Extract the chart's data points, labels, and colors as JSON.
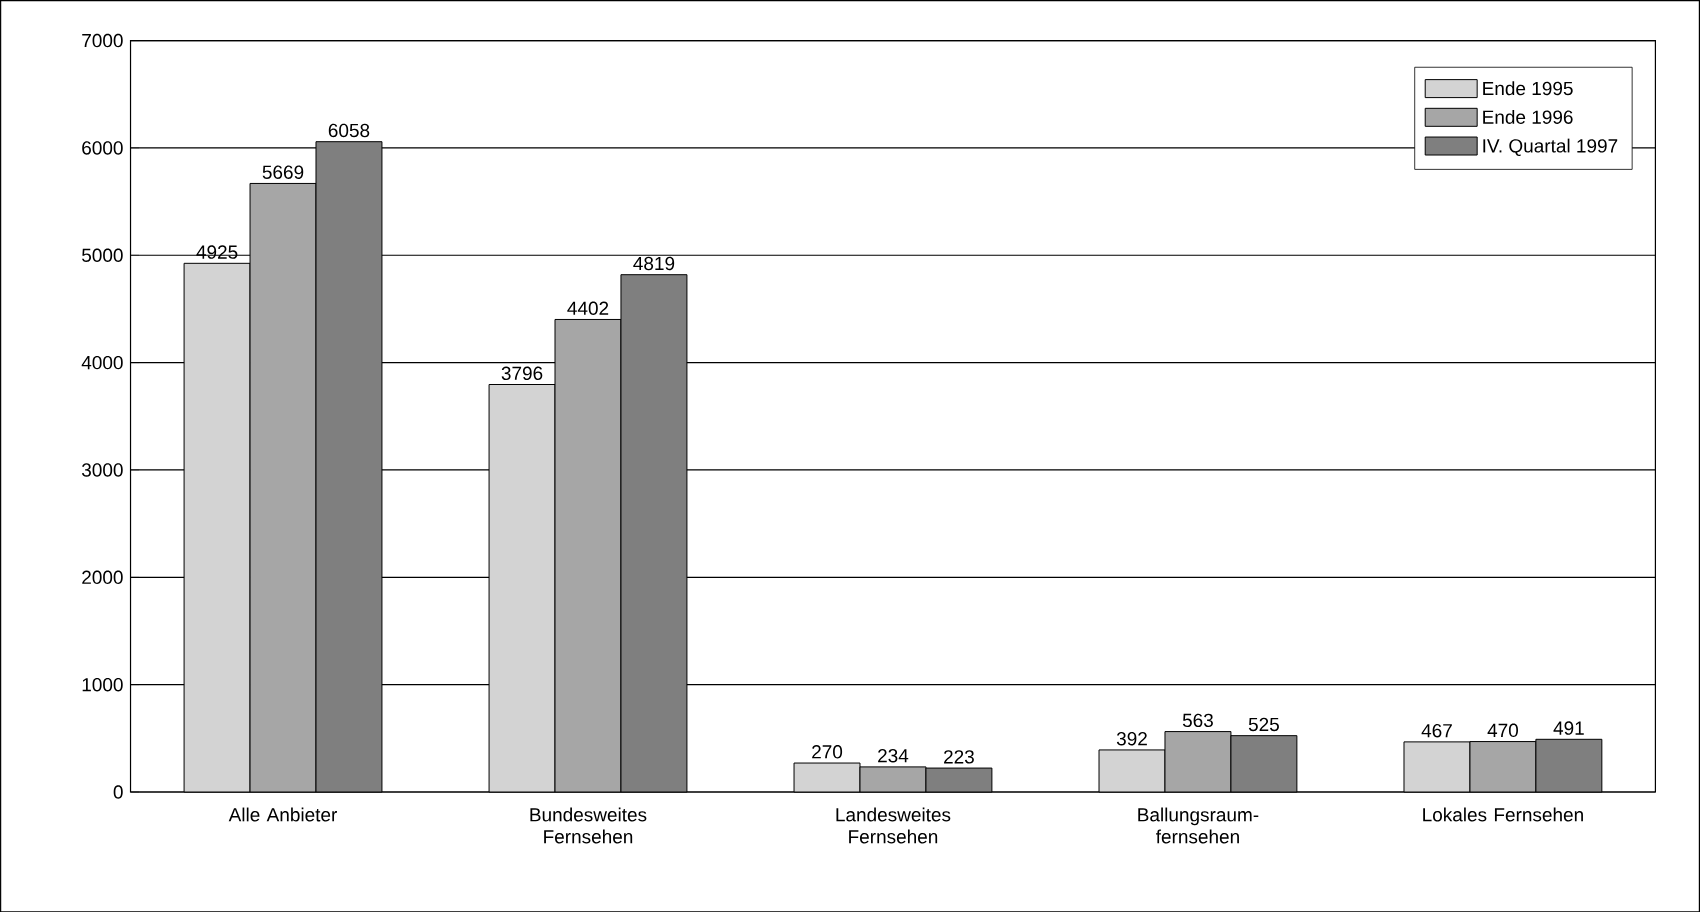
{
  "chart_data": {
    "type": "bar",
    "categories": [
      "Alle Anbieter",
      "Bundesweites Fernsehen",
      "Landesweites Fernsehen",
      "Ballungsraum-fernsehen",
      "Lokales Fernsehen"
    ],
    "series": [
      {
        "name": "Ende 1995",
        "color": "#d3d3d3",
        "values": [
          4925,
          3796,
          270,
          392,
          467
        ]
      },
      {
        "name": "Ende 1996",
        "color": "#a6a6a6",
        "values": [
          5669,
          4402,
          234,
          563,
          470
        ]
      },
      {
        "name": "IV. Quartal 1997",
        "color": "#7f7f7f",
        "values": [
          6058,
          4819,
          223,
          525,
          491
        ]
      }
    ],
    "ylim": [
      0,
      7000
    ],
    "yticks": [
      0,
      1000,
      2000,
      3000,
      4000,
      5000,
      6000,
      7000
    ],
    "grid": "y",
    "legend": "top right",
    "data_labels": true
  }
}
